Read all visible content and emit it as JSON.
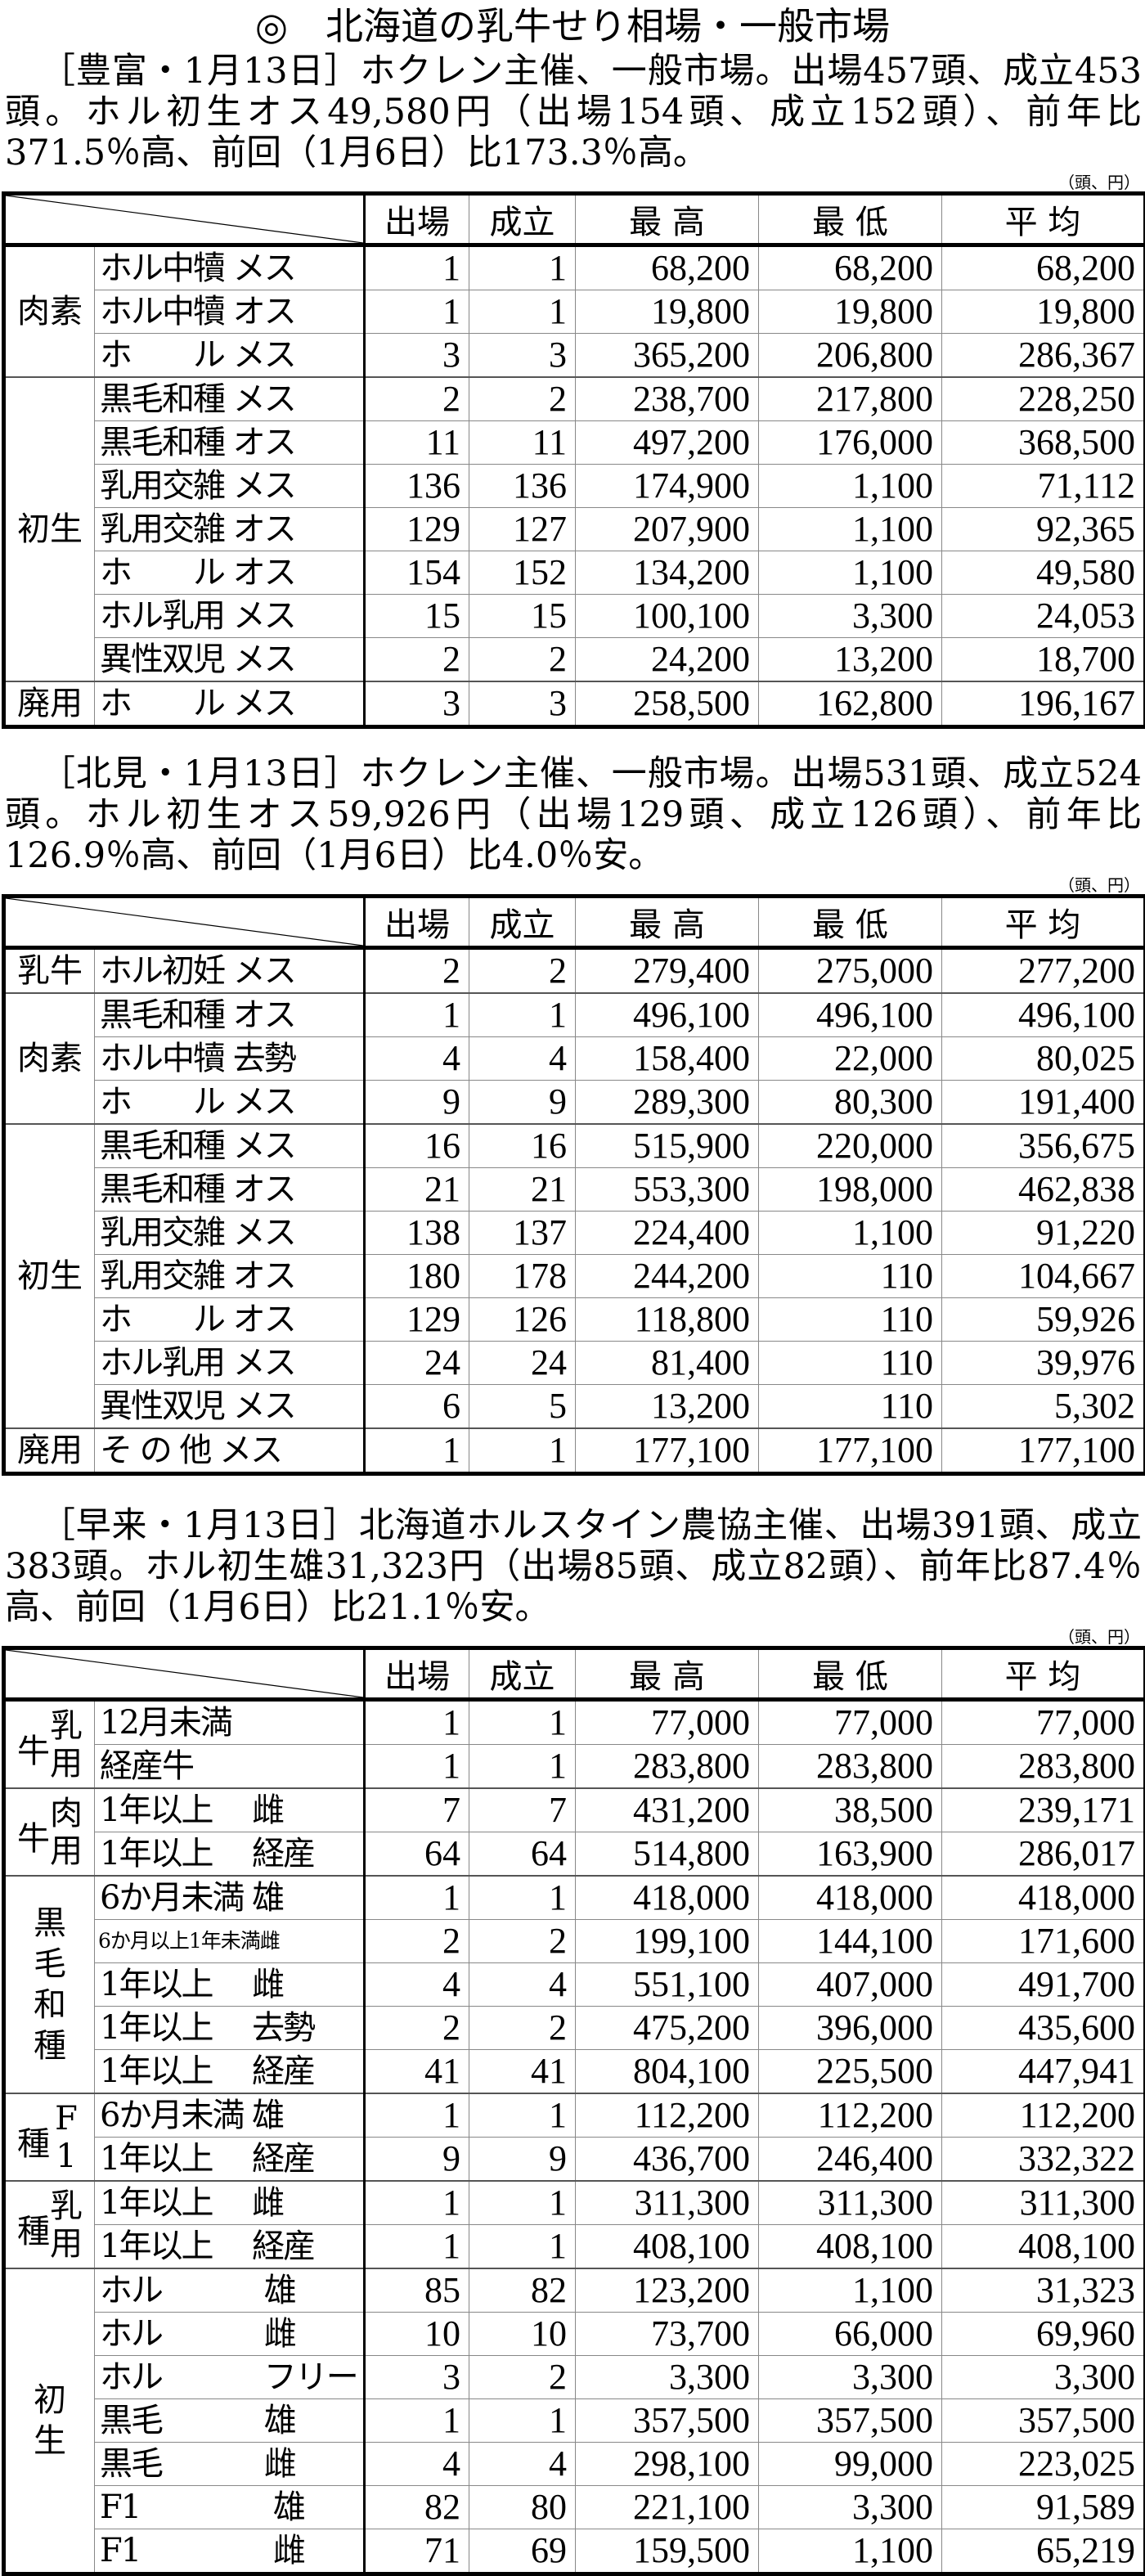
{
  "title": "◎　北海道の乳牛せり相場・一般市場",
  "sections": [
    {
      "text": "［豊富・1月13日］ホクレン主催、一般市場。出場457頭、成立453頭。ホル初生オス49,580円（出場154頭、成立152頭）、前年比371.5％高、前回（1月6日）比173.3％高。",
      "table": {
        "unit": "（頭、円）",
        "headers": [
          "出場",
          "成立",
          "最 高",
          "最 低",
          "平 均"
        ],
        "groups": [
          {
            "label": "肉素",
            "style": "h",
            "rows": [
              [
                "ホル中犢 メス",
                "1",
                "1",
                "68,200",
                "68,200",
                "68,200"
              ],
              [
                "ホル中犢 オス",
                "1",
                "1",
                "19,800",
                "19,800",
                "19,800"
              ],
              [
                "ホ　　ル メス",
                "3",
                "3",
                "365,200",
                "206,800",
                "286,367"
              ]
            ]
          },
          {
            "label": "初生",
            "style": "h",
            "rows": [
              [
                "黒毛和種 メス",
                "2",
                "2",
                "238,700",
                "217,800",
                "228,250"
              ],
              [
                "黒毛和種 オス",
                "11",
                "11",
                "497,200",
                "176,000",
                "368,500"
              ],
              [
                "乳用交雑 メス",
                "136",
                "136",
                "174,900",
                "1,100",
                "71,112"
              ],
              [
                "乳用交雑 オス",
                "129",
                "127",
                "207,900",
                "1,100",
                "92,365"
              ],
              [
                "ホ　　ル オス",
                "154",
                "152",
                "134,200",
                "1,100",
                "49,580"
              ],
              [
                "ホル乳用 メス",
                "15",
                "15",
                "100,100",
                "3,300",
                "24,053"
              ],
              [
                "異性双児 メス",
                "2",
                "2",
                "24,200",
                "13,200",
                "18,700"
              ]
            ]
          },
          {
            "label": "廃用",
            "style": "h",
            "rows": [
              [
                "ホ　　ル メス",
                "3",
                "3",
                "258,500",
                "162,800",
                "196,167"
              ]
            ]
          }
        ]
      }
    },
    {
      "text": "［北見・1月13日］ホクレン主催、一般市場。出場531頭、成立524頭。ホル初生オス59,926円（出場129頭、成立126頭）、前年比126.9％高、前回（1月6日）比4.0％安。",
      "table": {
        "unit": "（頭、円）",
        "headers": [
          "出場",
          "成立",
          "最 高",
          "最 低",
          "平 均"
        ],
        "groups": [
          {
            "label": "乳牛",
            "style": "h",
            "rows": [
              [
                "ホル初妊 メス",
                "2",
                "2",
                "279,400",
                "275,000",
                "277,200"
              ]
            ]
          },
          {
            "label": "肉素",
            "style": "h",
            "rows": [
              [
                "黒毛和種 オス",
                "1",
                "1",
                "496,100",
                "496,100",
                "496,100"
              ],
              [
                "ホル中犢 去勢",
                "4",
                "4",
                "158,400",
                "22,000",
                "80,025"
              ],
              [
                "ホ　　ル メス",
                "9",
                "9",
                "289,300",
                "80,300",
                "191,400"
              ]
            ]
          },
          {
            "label": "初生",
            "style": "h",
            "rows": [
              [
                "黒毛和種 メス",
                "16",
                "16",
                "515,900",
                "220,000",
                "356,675"
              ],
              [
                "黒毛和種 オス",
                "21",
                "21",
                "553,300",
                "198,000",
                "462,838"
              ],
              [
                "乳用交雑 メス",
                "138",
                "137",
                "224,400",
                "1,100",
                "91,220"
              ],
              [
                "乳用交雑 オス",
                "180",
                "178",
                "244,200",
                "110",
                "104,667"
              ],
              [
                "ホ　　ル オス",
                "129",
                "126",
                "118,800",
                "110",
                "59,926"
              ],
              [
                "ホル乳用 メス",
                "24",
                "24",
                "81,400",
                "110",
                "39,976"
              ],
              [
                "異性双児 メス",
                "6",
                "5",
                "13,200",
                "110",
                "5,302"
              ]
            ]
          },
          {
            "label": "廃用",
            "style": "h",
            "rows": [
              [
                "そ の 他 メス",
                "1",
                "1",
                "177,100",
                "177,100",
                "177,100"
              ]
            ]
          }
        ]
      }
    },
    {
      "text": "［早来・1月13日］北海道ホルスタイン農協主催、出場391頭、成立383頭。ホル初生雄31,323円（出場85頭、成立82頭）、前年比87.4％高、前回（1月6日）比21.1％安。",
      "table": {
        "unit": "（頭、円）",
        "headers": [
          "出場",
          "成立",
          "最 高",
          "最 低",
          "平 均"
        ],
        "groups": [
          {
            "label": "牛",
            "sub": "乳用",
            "style": "sub",
            "rows": [
              [
                "12月未満",
                "1",
                "1",
                "77,000",
                "77,000",
                "77,000"
              ],
              [
                "経産牛",
                "1",
                "1",
                "283,800",
                "283,800",
                "283,800"
              ]
            ]
          },
          {
            "label": "牛",
            "sub": "肉用",
            "style": "sub",
            "rows": [
              [
                "1年以上　 雌",
                "7",
                "7",
                "431,200",
                "38,500",
                "239,171"
              ],
              [
                "1年以上　 経産",
                "64",
                "64",
                "514,800",
                "163,900",
                "286,017"
              ]
            ]
          },
          {
            "label": "黒毛和種",
            "style": "v",
            "rows": [
              [
                "6か月未満 雄",
                "1",
                "1",
                "418,000",
                "418,000",
                "418,000"
              ],
              [
                "6か月以上1年未満雌",
                "2",
                "2",
                "199,100",
                "144,100",
                "171,600"
              ],
              [
                "1年以上　 雌",
                "4",
                "4",
                "551,100",
                "407,000",
                "491,700"
              ],
              [
                "1年以上　 去勢",
                "2",
                "2",
                "475,200",
                "396,000",
                "435,600"
              ],
              [
                "1年以上　 経産",
                "41",
                "41",
                "804,100",
                "225,500",
                "447,941"
              ]
            ]
          },
          {
            "label": "種",
            "sub": "F1",
            "style": "sub",
            "rows": [
              [
                "6か月未満 雄",
                "1",
                "1",
                "112,200",
                "112,200",
                "112,200"
              ],
              [
                "1年以上　 経産",
                "9",
                "9",
                "436,700",
                "246,400",
                "332,322"
              ]
            ]
          },
          {
            "label": "種",
            "sub": "乳用",
            "style": "sub",
            "rows": [
              [
                "1年以上　 雌",
                "1",
                "1",
                "311,300",
                "311,300",
                "311,300"
              ],
              [
                "1年以上　 経産",
                "1",
                "1",
                "408,100",
                "408,100",
                "408,100"
              ]
            ]
          },
          {
            "label": "初生",
            "style": "v",
            "rows": [
              [
                "ホル　　　 雄",
                "85",
                "82",
                "123,200",
                "1,100",
                "31,323"
              ],
              [
                "ホル　　　 雌",
                "10",
                "10",
                "73,700",
                "66,000",
                "69,960"
              ],
              [
                "ホル　　　 フリー",
                "3",
                "2",
                "3,300",
                "3,300",
                "3,300"
              ],
              [
                "黒毛　　　 雄",
                "1",
                "1",
                "357,500",
                "357,500",
                "357,500"
              ],
              [
                "黒毛　　　 雌",
                "4",
                "4",
                "298,100",
                "99,000",
                "223,025"
              ],
              [
                "F1　　　　 雄",
                "82",
                "80",
                "221,100",
                "3,300",
                "91,589"
              ],
              [
                "F1　　　　 雌",
                "71",
                "69",
                "159,500",
                "1,100",
                "65,219"
              ]
            ]
          }
        ]
      }
    }
  ]
}
